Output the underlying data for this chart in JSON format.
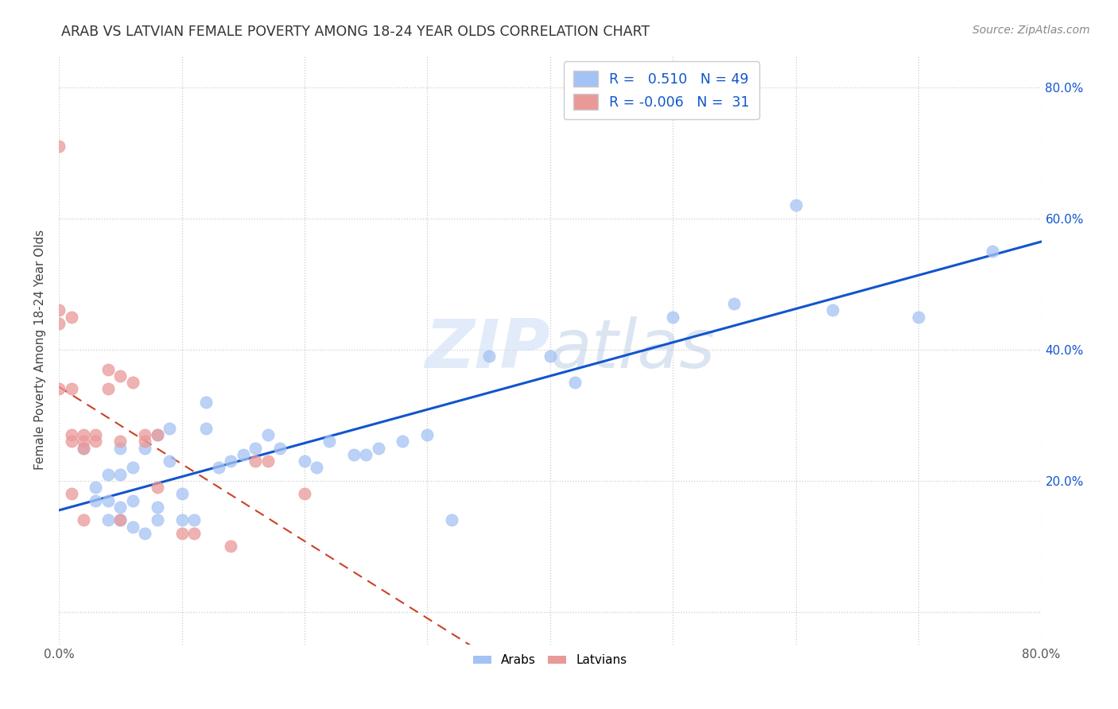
{
  "title": "ARAB VS LATVIAN FEMALE POVERTY AMONG 18-24 YEAR OLDS CORRELATION CHART",
  "source": "Source: ZipAtlas.com",
  "ylabel": "Female Poverty Among 18-24 Year Olds",
  "xlim": [
    0.0,
    0.8
  ],
  "ylim": [
    -0.05,
    0.85
  ],
  "xtick_pos": [
    0.0,
    0.1,
    0.2,
    0.3,
    0.4,
    0.5,
    0.6,
    0.7,
    0.8
  ],
  "xticklabels": [
    "0.0%",
    "",
    "",
    "",
    "",
    "",
    "",
    "",
    "80.0%"
  ],
  "ytick_pos": [
    0.0,
    0.2,
    0.4,
    0.6,
    0.8
  ],
  "ytick_labels_right": [
    "",
    "20.0%",
    "40.0%",
    "60.0%",
    "80.0%"
  ],
  "arab_R": 0.51,
  "arab_N": 49,
  "latvian_R": -0.006,
  "latvian_N": 31,
  "arab_color": "#a4c2f4",
  "latvian_color": "#ea9999",
  "arab_line_color": "#1155cc",
  "latvian_line_color": "#cc4125",
  "arab_scatter_x": [
    0.02,
    0.03,
    0.03,
    0.04,
    0.04,
    0.04,
    0.05,
    0.05,
    0.05,
    0.05,
    0.06,
    0.06,
    0.06,
    0.07,
    0.07,
    0.08,
    0.08,
    0.08,
    0.09,
    0.09,
    0.1,
    0.1,
    0.11,
    0.12,
    0.12,
    0.13,
    0.14,
    0.15,
    0.16,
    0.17,
    0.18,
    0.2,
    0.21,
    0.22,
    0.24,
    0.25,
    0.26,
    0.28,
    0.3,
    0.32,
    0.35,
    0.4,
    0.42,
    0.5,
    0.55,
    0.6,
    0.63,
    0.7,
    0.76
  ],
  "arab_scatter_y": [
    0.25,
    0.17,
    0.19,
    0.14,
    0.17,
    0.21,
    0.14,
    0.16,
    0.21,
    0.25,
    0.13,
    0.17,
    0.22,
    0.12,
    0.25,
    0.14,
    0.16,
    0.27,
    0.23,
    0.28,
    0.14,
    0.18,
    0.14,
    0.32,
    0.28,
    0.22,
    0.23,
    0.24,
    0.25,
    0.27,
    0.25,
    0.23,
    0.22,
    0.26,
    0.24,
    0.24,
    0.25,
    0.26,
    0.27,
    0.14,
    0.39,
    0.39,
    0.35,
    0.45,
    0.47,
    0.62,
    0.46,
    0.45,
    0.55
  ],
  "latvian_scatter_x": [
    0.0,
    0.0,
    0.0,
    0.0,
    0.01,
    0.01,
    0.01,
    0.01,
    0.01,
    0.02,
    0.02,
    0.02,
    0.02,
    0.03,
    0.03,
    0.04,
    0.04,
    0.05,
    0.05,
    0.05,
    0.06,
    0.07,
    0.07,
    0.08,
    0.08,
    0.1,
    0.11,
    0.14,
    0.16,
    0.17,
    0.2
  ],
  "latvian_scatter_y": [
    0.71,
    0.46,
    0.44,
    0.34,
    0.45,
    0.34,
    0.27,
    0.26,
    0.18,
    0.27,
    0.26,
    0.25,
    0.14,
    0.27,
    0.26,
    0.37,
    0.34,
    0.36,
    0.26,
    0.14,
    0.35,
    0.27,
    0.26,
    0.27,
    0.19,
    0.12,
    0.12,
    0.1,
    0.23,
    0.23,
    0.18
  ],
  "background_color": "#ffffff",
  "grid_color": "#cccccc"
}
